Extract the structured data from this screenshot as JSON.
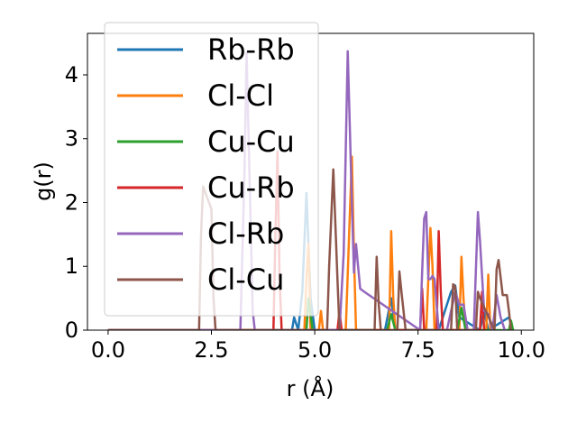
{
  "chart_data": {
    "type": "line",
    "xlabel": "r (Å)",
    "ylabel": "g(r)",
    "xlim": [
      -0.5,
      10.3
    ],
    "ylim": [
      0,
      4.65
    ],
    "xticks": [
      0.0,
      2.5,
      5.0,
      7.5,
      10.0
    ],
    "xtick_labels": [
      "0.0",
      "2.5",
      "5.0",
      "7.5",
      "10.0"
    ],
    "yticks": [
      0,
      1,
      2,
      3,
      4
    ],
    "ytick_labels": [
      "0",
      "1",
      "2",
      "3",
      "4"
    ],
    "grid": false,
    "legend_position": "top-left",
    "series": [
      {
        "name": "Rb-Rb",
        "color": "#1f77b4",
        "x": [
          0,
          4.45,
          4.5,
          4.6,
          4.7,
          4.8,
          4.9,
          5.0,
          6.7,
          6.85,
          6.95,
          7.0,
          8.0,
          8.3,
          8.4,
          8.5,
          9.0,
          9.1,
          9.2,
          9.7,
          9.8
        ],
        "y": [
          0,
          0,
          0.2,
          0,
          0.6,
          2.15,
          0.5,
          0,
          0,
          0.5,
          0,
          0,
          0,
          0.6,
          0.7,
          0.2,
          0,
          0.3,
          0,
          0.2,
          0
        ]
      },
      {
        "name": "Cl-Cl",
        "color": "#ff7f0e",
        "x": [
          0,
          4.75,
          4.8,
          4.85,
          4.9,
          5.1,
          5.15,
          5.2,
          5.75,
          5.9,
          5.95,
          6.0,
          6.8,
          6.85,
          6.9,
          6.95,
          7.7,
          7.8,
          7.85,
          7.9,
          8.5,
          8.55,
          8.6,
          8.65,
          9.15,
          9.2,
          9.25
        ],
        "y": [
          0,
          0,
          0.8,
          1.35,
          0,
          0,
          0.3,
          0,
          0,
          2.72,
          1.2,
          0,
          0,
          1.55,
          0.5,
          0,
          0,
          1.6,
          1.0,
          0,
          0,
          1.15,
          0.5,
          0,
          0,
          0.87,
          0
        ]
      },
      {
        "name": "Cu-Cu",
        "color": "#2ca02c",
        "x": [
          0,
          4.8,
          4.85,
          4.95,
          6.75,
          6.85,
          6.95,
          8.45,
          8.55,
          8.65,
          9.7,
          9.75,
          9.8
        ],
        "y": [
          0,
          0,
          0.5,
          0,
          0,
          0.25,
          0,
          0,
          0.35,
          0,
          0,
          0.15,
          0
        ]
      },
      {
        "name": "Cu-Rb",
        "color": "#d62728",
        "x": [
          0,
          4.0,
          4.05,
          4.1,
          4.15,
          4.2,
          5.55,
          5.6,
          5.65,
          7.55,
          7.6,
          7.65,
          7.95,
          8.0,
          8.05,
          8.1,
          9.0,
          9.05,
          9.1
        ],
        "y": [
          0,
          0,
          1.5,
          2.8,
          0.8,
          0,
          0,
          0.3,
          0,
          0,
          0.65,
          0,
          0,
          1.55,
          0.6,
          0,
          0,
          0.6,
          0
        ]
      },
      {
        "name": "Cl-Rb",
        "color": "#9467bd",
        "x": [
          0,
          3.2,
          3.3,
          3.35,
          3.4,
          3.5,
          3.55,
          5.6,
          5.7,
          5.8,
          5.9,
          5.95,
          6.0,
          6.1,
          6.2,
          7.55,
          7.6,
          7.65,
          7.7,
          7.75,
          7.8,
          7.85,
          7.9,
          8.0,
          8.2,
          8.3,
          8.4,
          8.5,
          8.6,
          8.7,
          8.85,
          8.95,
          9.0,
          9.1,
          9.2,
          9.3,
          9.4,
          9.5,
          9.6
        ],
        "y": [
          0,
          0,
          2.5,
          4.35,
          3.0,
          0.3,
          0,
          0,
          1.2,
          4.37,
          2.0,
          0.9,
          1.35,
          0.65,
          0.6,
          0,
          0.9,
          1.75,
          1.85,
          0.8,
          0.8,
          0.85,
          0.8,
          0,
          0,
          0.3,
          0.6,
          0.4,
          0.4,
          0,
          0,
          1.85,
          1.4,
          0.3,
          0.25,
          0,
          0.55,
          0.2,
          0
        ]
      },
      {
        "name": "Cl-Cu",
        "color": "#8c564b",
        "x": [
          0,
          2.2,
          2.25,
          2.3,
          2.5,
          2.55,
          2.6,
          5.3,
          5.35,
          5.45,
          5.55,
          5.6,
          6.45,
          6.5,
          6.55,
          6.6,
          7.0,
          7.05,
          7.1,
          7.15,
          7.2,
          8.3,
          8.35,
          8.4,
          8.45,
          8.9,
          8.95,
          9.0,
          9.35,
          9.4,
          9.45,
          9.55,
          9.65,
          9.7,
          9.75
        ],
        "y": [
          0,
          0,
          1.5,
          2.25,
          1.9,
          0.5,
          0,
          0,
          1.0,
          2.52,
          0.8,
          0,
          0,
          1.15,
          0.4,
          0,
          0,
          0.92,
          0.6,
          0.3,
          0,
          0,
          0.72,
          0.68,
          0,
          0,
          0.6,
          0.5,
          0,
          0.95,
          1.1,
          0.55,
          0.55,
          0.3,
          0
        ]
      }
    ]
  }
}
